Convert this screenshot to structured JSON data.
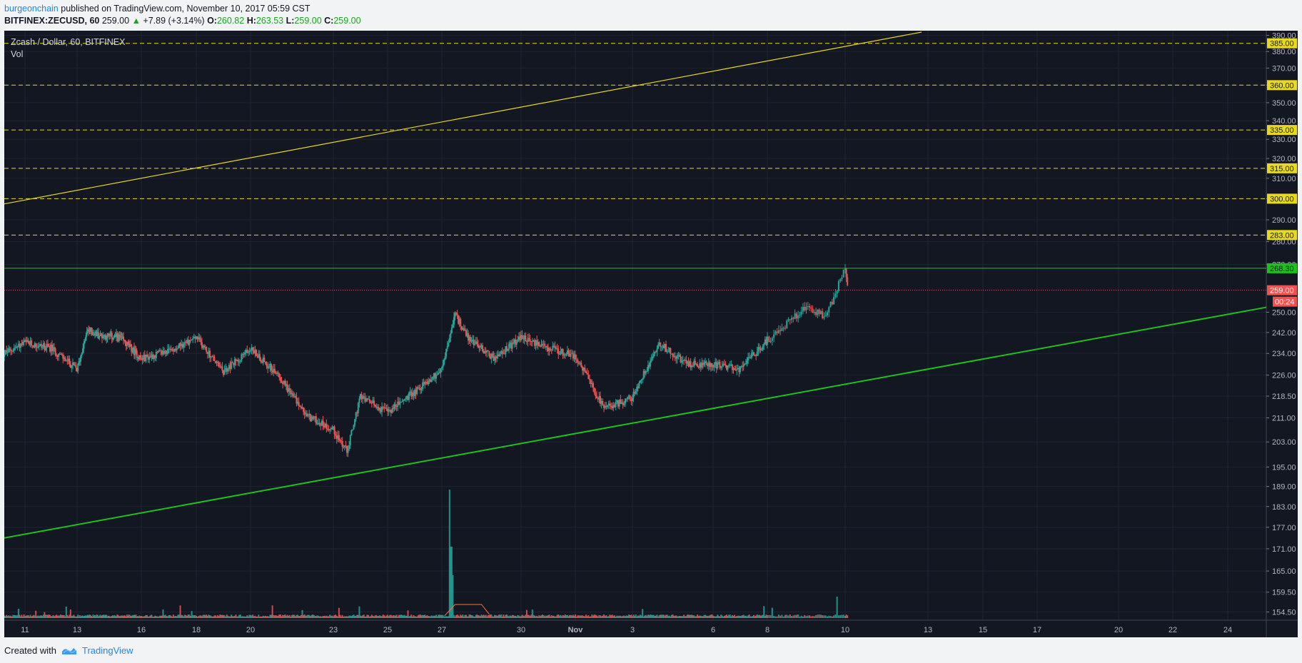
{
  "header": {
    "author": "burgeonchain",
    "published": " published on TradingView.com, November 10, 2017 05:59 CST"
  },
  "info": {
    "symbol": "BITFINEX:ZECUSD, 60",
    "last": "259.00",
    "change": "+7.89 (+3.14%)",
    "o_label": "O:",
    "o": "260.82",
    "h_label": "H:",
    "h": "263.53",
    "l_label": "L:",
    "l": "259.00",
    "c_label": "C:",
    "c": "259.00"
  },
  "legend": {
    "title": "Zcash / Dollar, 60, BITFINEX",
    "vol": "Vol"
  },
  "footer": {
    "created": "Created with",
    "brand": "TradingView"
  },
  "colors": {
    "background": "#131722",
    "up": "#26a69a",
    "down": "#ef5350",
    "level": "#e8d91e",
    "support": "#1ec01e"
  },
  "chart_data": {
    "type": "candlestick",
    "title": "Zcash / Dollar, 60, BITFINEX",
    "y_scale": "log",
    "ylim": [
      153,
      392
    ],
    "y_ticks": [
      "390.00",
      "380.00",
      "370.00",
      "360.00",
      "350.00",
      "340.00",
      "330.00",
      "320.00",
      "310.00",
      "300.00",
      "290.00",
      "280.00",
      "270.00",
      "250.00",
      "242.00",
      "234.00",
      "226.00",
      "218.50",
      "211.00",
      "203.00",
      "195.00",
      "189.00",
      "183.00",
      "177.00",
      "171.00",
      "165.00",
      "159.50",
      "154.50"
    ],
    "x_ticks": [
      "11",
      "13",
      "16",
      "18",
      "20",
      "23",
      "25",
      "27",
      "30",
      "Nov",
      "3",
      "6",
      "8",
      "10",
      "13",
      "15",
      "17",
      "20",
      "22",
      "24"
    ],
    "horizontal_levels": [
      "385.00",
      "360.00",
      "335.00",
      "315.00",
      "300.00",
      "283.00"
    ],
    "resistance_label": "268.30",
    "last_price_label": "259.00",
    "countdown_label": "00:24",
    "anchors": [
      {
        "x": "10",
        "y": 233
      },
      {
        "x": "11",
        "y": 238
      },
      {
        "x": "12",
        "y": 236
      },
      {
        "x": "13",
        "y": 228
      },
      {
        "x": "13.5",
        "y": 243
      },
      {
        "x": "14",
        "y": 241
      },
      {
        "x": "15",
        "y": 240
      },
      {
        "x": "16",
        "y": 232
      },
      {
        "x": "17",
        "y": 235
      },
      {
        "x": "18",
        "y": 240
      },
      {
        "x": "19",
        "y": 227
      },
      {
        "x": "20",
        "y": 236
      },
      {
        "x": "21",
        "y": 226
      },
      {
        "x": "22",
        "y": 212
      },
      {
        "x": "23",
        "y": 207
      },
      {
        "x": "23.5",
        "y": 200
      },
      {
        "x": "24",
        "y": 218
      },
      {
        "x": "25",
        "y": 213
      },
      {
        "x": "26",
        "y": 220
      },
      {
        "x": "27",
        "y": 228
      },
      {
        "x": "27.5",
        "y": 249
      },
      {
        "x": "28",
        "y": 240
      },
      {
        "x": "29",
        "y": 232
      },
      {
        "x": "30",
        "y": 240
      },
      {
        "x": "31",
        "y": 236
      },
      {
        "x": "Nov 1",
        "y": 233
      },
      {
        "x": "Nov 2",
        "y": 214
      },
      {
        "x": "Nov 3",
        "y": 218
      },
      {
        "x": "Nov 4",
        "y": 238
      },
      {
        "x": "Nov 5",
        "y": 230
      },
      {
        "x": "Nov 6",
        "y": 230
      },
      {
        "x": "Nov 7",
        "y": 228
      },
      {
        "x": "Nov 8",
        "y": 239
      },
      {
        "x": "Nov 9",
        "y": 252
      },
      {
        "x": "Nov 9.5",
        "y": 248
      },
      {
        "x": "Nov 10",
        "y": 268
      },
      {
        "x": "Nov 10.1",
        "y": 259
      }
    ]
  }
}
